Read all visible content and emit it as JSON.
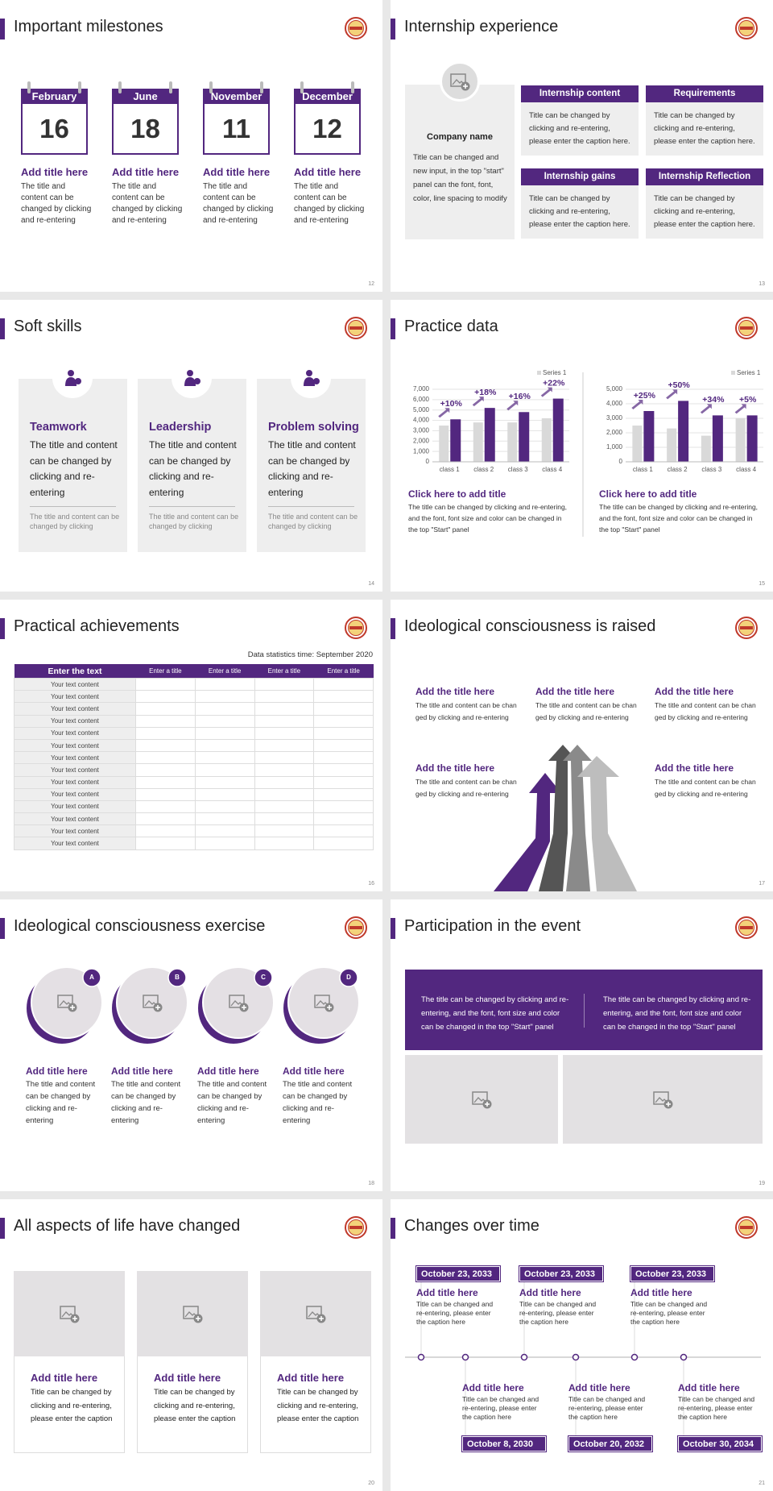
{
  "slides": [
    {
      "title": "Important milestones",
      "page": 12,
      "cards": [
        {
          "month": "February",
          "day": 16,
          "title": "Add title here",
          "text": "The title and content can be changed by clicking and re-entering"
        },
        {
          "month": "June",
          "day": 18,
          "title": "Add title here",
          "text": "The title and content can be changed by clicking and re-entering"
        },
        {
          "month": "November",
          "day": 11,
          "title": "Add title here",
          "text": "The title and content can be changed by clicking and re-entering"
        },
        {
          "month": "December",
          "day": 12,
          "title": "Add title here",
          "text": "The title and content can be changed by clicking and re-entering"
        }
      ]
    },
    {
      "title": "Internship experience",
      "page": 13,
      "company": {
        "name": "Company name",
        "text": "Title can be changed and new input, in the top \"start\" panel can the font, font, color, line spacing to modify"
      },
      "boxes": [
        {
          "header": "Internship content",
          "text": "Title can be changed by clicking and re-entering, please enter the caption here."
        },
        {
          "header": "Requirements",
          "text": "Title can be changed by clicking and re-entering, please enter the caption here."
        },
        {
          "header": "Internship gains",
          "text": "Title can be changed by clicking and re-entering, please enter the caption here."
        },
        {
          "header": "Internship Reflection",
          "text": "Title can be changed by clicking and re-entering, please enter the caption here."
        }
      ]
    },
    {
      "title": "Soft skills",
      "page": 14,
      "cards": [
        {
          "title": "Teamwork",
          "text": "The title and content can be changed by clicking and re-entering",
          "note": "The title and content can be changed by clicking"
        },
        {
          "title": "Leadership",
          "text": "The title and content can be changed by clicking and re-entering",
          "note": "The title and content can be changed by clicking"
        },
        {
          "title": "Problem solving",
          "text": "The title and content can be changed by clicking and re-entering",
          "note": "The title and content can be changed by clicking"
        }
      ]
    },
    {
      "title": "Practice data",
      "page": 15,
      "panels": [
        {
          "title": "Click here to add title",
          "text": "The title can be changed by clicking and re-entering, and the font, font size and color can be changed in the top \"Start\" panel"
        },
        {
          "title": "Click here to add title",
          "text": "The title can be changed by clicking and re-entering, and the font, font size and color can be changed in the top \"Start\" panel"
        }
      ]
    },
    {
      "title": "Practical achievements",
      "page": 16,
      "note": "Data statistics time: September 2020",
      "table": {
        "header": [
          "Enter the text",
          "Enter a title",
          "Enter a title",
          "Enter a title",
          "Enter a title"
        ],
        "rows": [
          [
            "Your text content"
          ],
          [
            "Your text content"
          ],
          [
            "Your text content"
          ],
          [
            "Your text content"
          ],
          [
            "Your text content"
          ],
          [
            "Your text content"
          ],
          [
            "Your text content"
          ],
          [
            "Your text content"
          ],
          [
            "Your text content"
          ],
          [
            "Your text content"
          ],
          [
            "Your text content"
          ],
          [
            "Your text content"
          ],
          [
            "Your text content"
          ],
          [
            "Your text content"
          ]
        ]
      }
    },
    {
      "title": "Ideological consciousness is raised",
      "page": 17,
      "items": [
        {
          "title": "Add the title here",
          "text": "The title and content can be changed by clicking and re-entering"
        },
        {
          "title": "Add the title here",
          "text": "The title and content can be changed by clicking and re-entering"
        },
        {
          "title": "Add the title here",
          "text": "The title and content can be changed by clicking and re-entering"
        },
        {
          "title": "Add the title here",
          "text": "The title and content can be changed by clicking and re-entering"
        },
        {
          "title": "Add the title here",
          "text": "The title and content can be changed by clicking and re-entering"
        }
      ]
    },
    {
      "title": "Ideological consciousness exercise",
      "page": 18,
      "items": [
        {
          "badge": "A",
          "title": "Add title here",
          "text": "The title and content can be changed by clicking and re-entering"
        },
        {
          "badge": "B",
          "title": "Add title here",
          "text": "The title and content can be changed by clicking and re-entering"
        },
        {
          "badge": "C",
          "title": "Add title here",
          "text": "The title and content can be changed by clicking and re-entering"
        },
        {
          "badge": "D",
          "title": "Add title here",
          "text": "The title and content can be changed by clicking and re-entering"
        }
      ]
    },
    {
      "title": "Participation in the event",
      "page": 19,
      "texts": [
        "The title can be changed by clicking and re-entering, and the font, font size and color can be changed in the top \"Start\" panel",
        "The title can be changed by clicking and re-entering, and the font, font size and color can be changed in the top \"Start\" panel"
      ]
    },
    {
      "title": "All aspects of life have changed",
      "page": 20,
      "cards": [
        {
          "title": "Add title here",
          "text": "Title can be changed by clicking and re-entering, please enter the caption"
        },
        {
          "title": "Add title here",
          "text": "Title can be changed by clicking and re-entering, please enter the caption"
        },
        {
          "title": "Add title here",
          "text": "Title can be changed by clicking and re-entering, please enter the caption"
        }
      ]
    },
    {
      "title": "Changes over time",
      "page": 21,
      "events": [
        {
          "date": "October 23, 2033",
          "title": "Add title here",
          "text": "Title can be changed and re-entering, please enter the caption here"
        },
        {
          "date": "October 8, 2030",
          "title": "Add title here",
          "text": "Title can be changed and re-entering, please enter the caption here"
        },
        {
          "date": "October 23, 2033",
          "title": "Add title here",
          "text": "Title can be changed and re-entering, please enter the caption here"
        },
        {
          "date": "October 20, 2032",
          "title": "Add title here",
          "text": "Title can be changed and re-entering, please enter the caption here"
        },
        {
          "date": "October 23, 2033",
          "title": "Add title here",
          "text": "Title can be changed and re-entering, please enter the caption here"
        },
        {
          "date": "October 30, 2034",
          "title": "Add title here",
          "text": "Title can be changed and re-entering, please enter the caption here"
        }
      ]
    }
  ],
  "chart_data": [
    {
      "type": "bar",
      "categories": [
        "class 1",
        "class 2",
        "class 3",
        "class 4"
      ],
      "series": [
        {
          "name": "Series 1",
          "color": "#d9d9d9",
          "values": [
            3500,
            3800,
            3800,
            4200
          ]
        },
        {
          "color": "#52277f",
          "values": [
            4100,
            5200,
            4800,
            6100
          ]
        }
      ],
      "annotations": [
        "+10%",
        "+18%",
        "+16%",
        "+22%"
      ],
      "ylim": [
        0,
        7000
      ],
      "yticks": [
        0,
        {
          "value": 1000,
          "label": "1,000"
        },
        {
          "value": 2000,
          "label": "2,000"
        },
        {
          "value": 3000,
          "label": "3,000"
        },
        {
          "value": 4000,
          "label": "4,000"
        },
        {
          "value": 5000,
          "label": "5,000"
        },
        {
          "value": 6000,
          "label": "6,000"
        },
        {
          "value": 7000,
          "label": "7,000"
        }
      ],
      "grid": true
    },
    {
      "type": "bar",
      "categories": [
        "class 1",
        "class 2",
        "class 3",
        "class 4"
      ],
      "series": [
        {
          "name": "Series 1",
          "color": "#d9d9d9",
          "values": [
            2500,
            2300,
            1800,
            3000
          ]
        },
        {
          "color": "#52277f",
          "values": [
            3500,
            4200,
            3200,
            3200
          ]
        }
      ],
      "annotations": [
        "+25%",
        "+50%",
        "+34%",
        "+5%"
      ],
      "ylim": [
        0,
        5000
      ],
      "yticks": [
        0,
        {
          "value": 1000,
          "label": "1,000"
        },
        {
          "value": 2000,
          "label": "2,000"
        },
        {
          "value": 3000,
          "label": "3,000"
        },
        {
          "value": 4000,
          "label": "4,000"
        },
        {
          "value": 5000,
          "label": "5,000"
        }
      ],
      "grid": true
    }
  ]
}
